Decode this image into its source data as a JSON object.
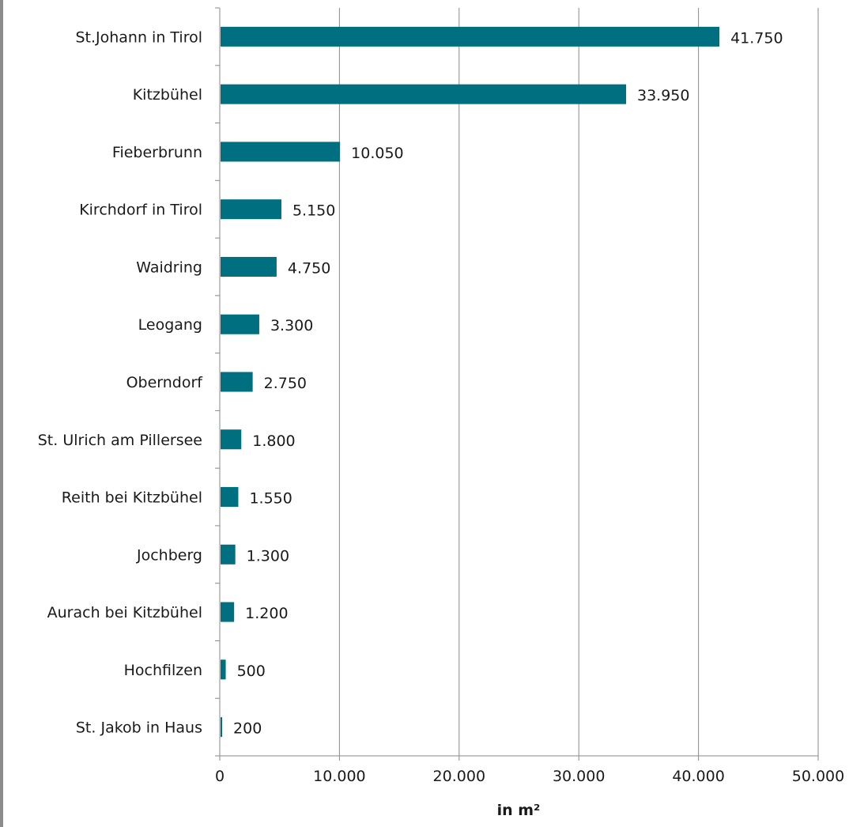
{
  "chart_data": {
    "type": "bar",
    "orientation": "horizontal",
    "categories": [
      "St.Johann in Tirol",
      "Kitzbühel",
      "Fieberbrunn",
      "Kirchdorf in Tirol",
      "Waidring",
      "Leogang",
      "Oberndorf",
      "St. Ulrich am Pillersee",
      "Reith bei Kitzbühel",
      "Jochberg",
      "Aurach bei Kitzbühel",
      "Hochfilzen",
      "St. Jakob in Haus"
    ],
    "values": [
      41750,
      33950,
      10050,
      5150,
      4750,
      3300,
      2750,
      1800,
      1550,
      1300,
      1200,
      500,
      200
    ],
    "value_labels": [
      "41.750",
      "33.950",
      "10.050",
      "5.150",
      "4.750",
      "3.300",
      "2.750",
      "1.800",
      "1.550",
      "1.300",
      "1.200",
      "500",
      "200"
    ],
    "title": "",
    "xlabel": "in m²",
    "ylabel": "",
    "xlim": [
      0,
      50000
    ],
    "x_ticks": [
      0,
      10000,
      20000,
      30000,
      40000,
      50000
    ],
    "x_tick_labels": [
      "0",
      "10.000",
      "20.000",
      "30.000",
      "40.000",
      "50.000"
    ],
    "grid": "vertical",
    "legend": "none",
    "bar_color": "#007080"
  }
}
